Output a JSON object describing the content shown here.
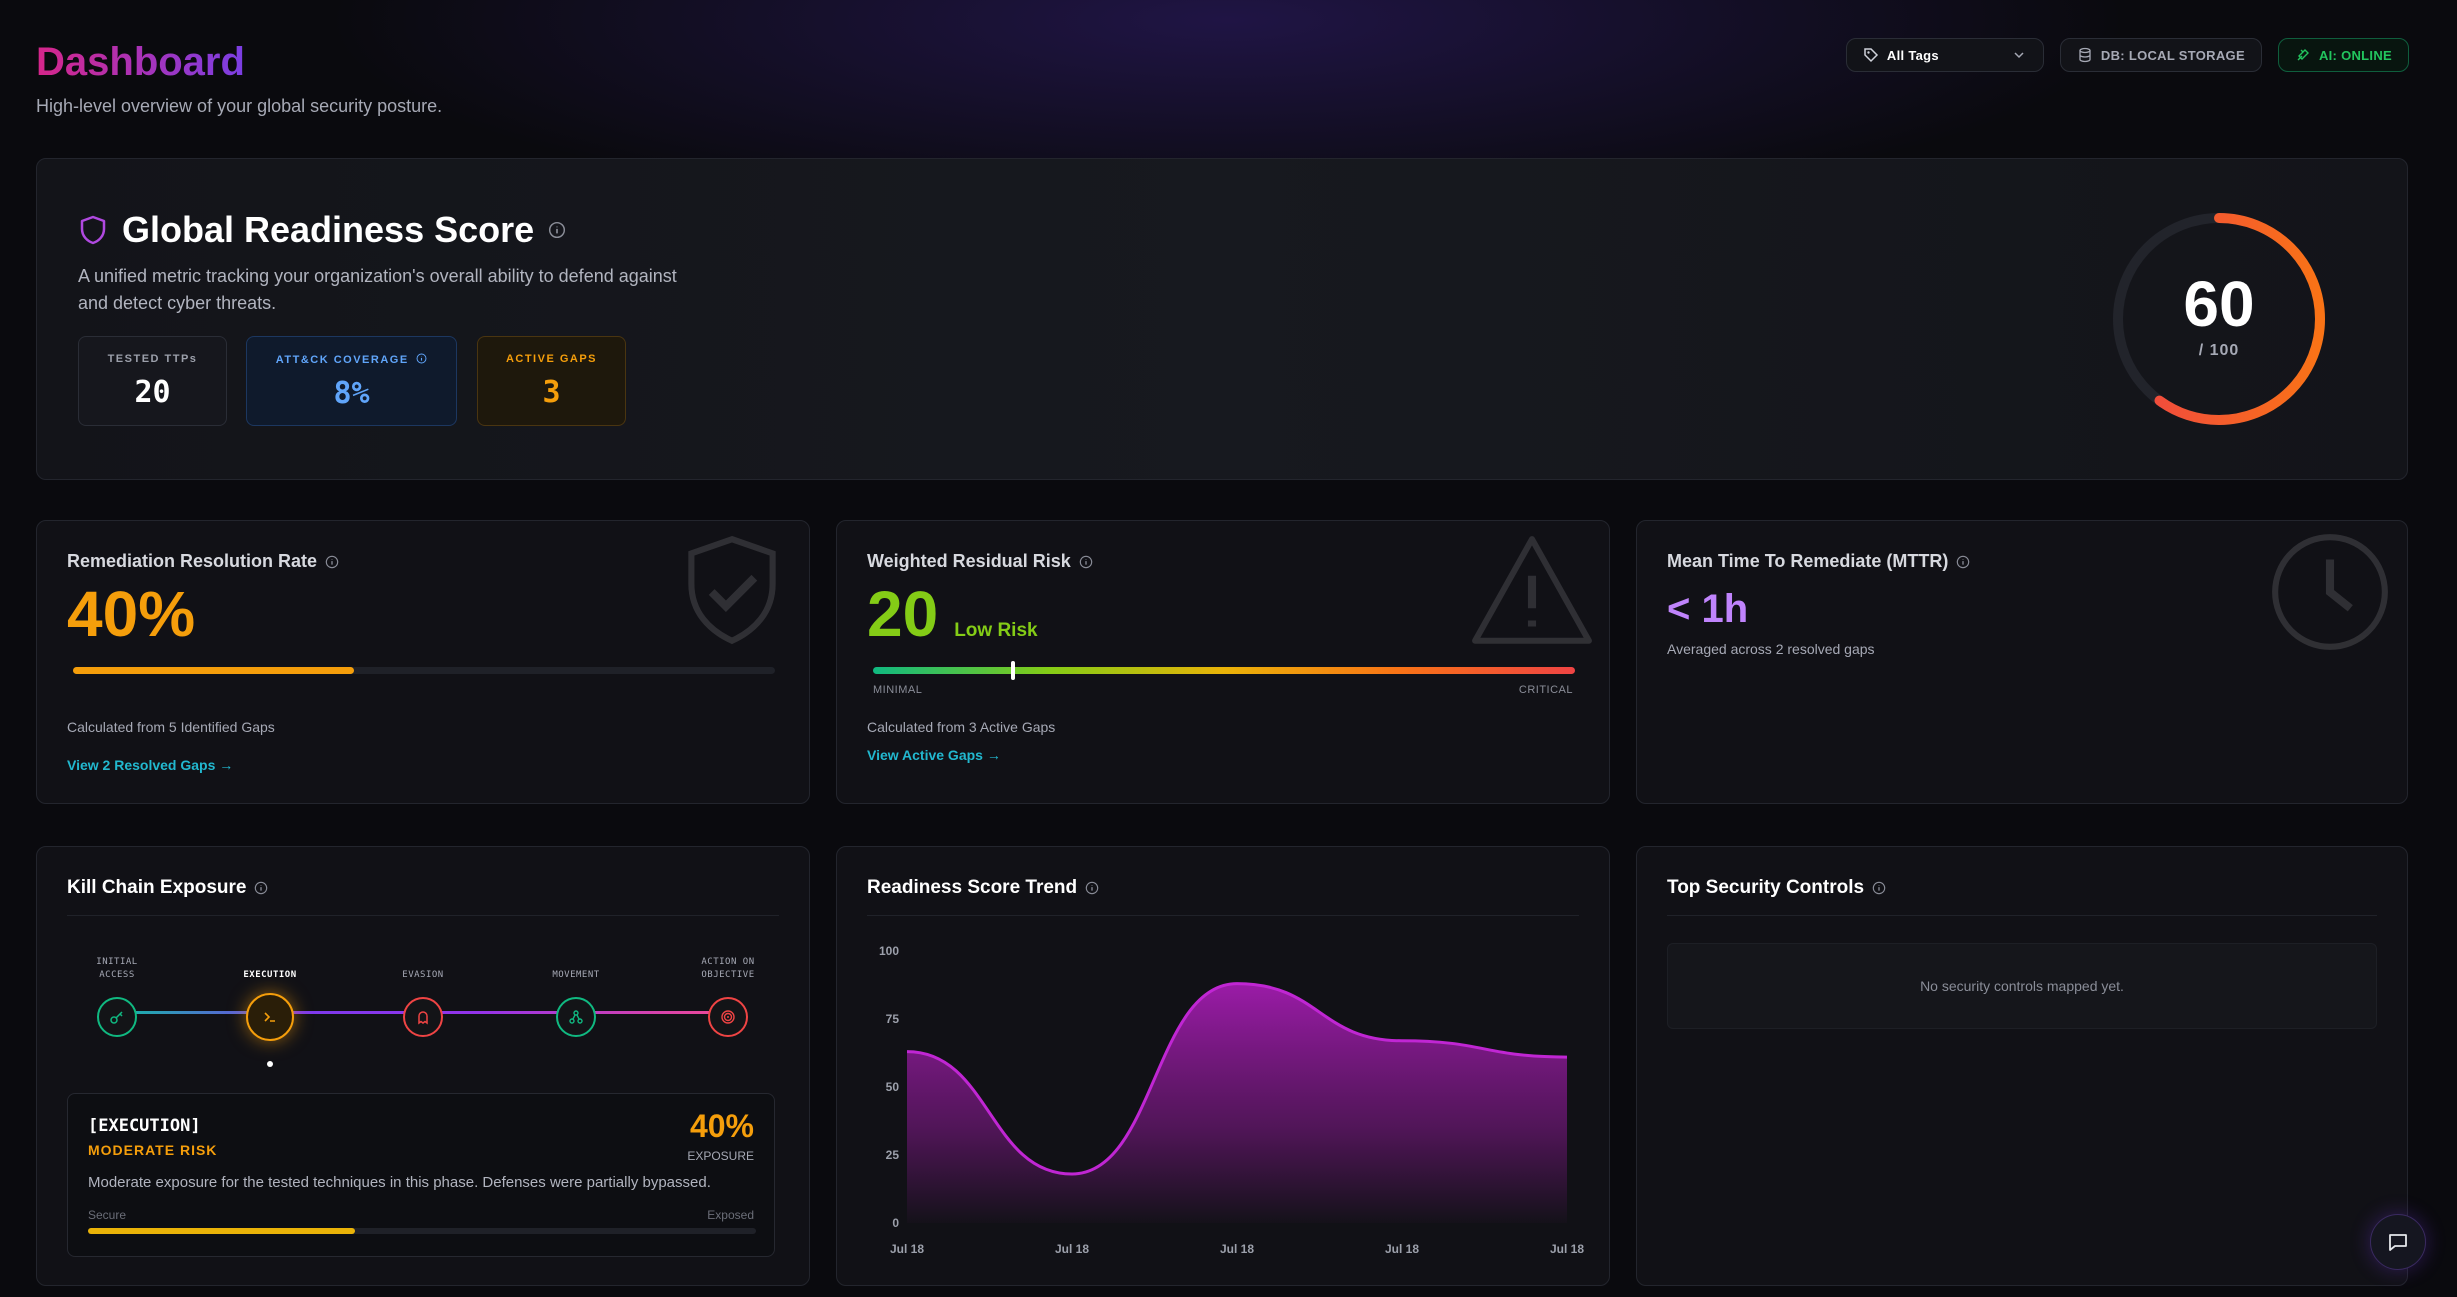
{
  "header": {
    "title": "Dashboard",
    "subtitle": "High-level overview of your global security posture."
  },
  "topbar": {
    "tags_filter": "All Tags",
    "db_status": "DB: LOCAL STORAGE",
    "ai_status": "AI: ONLINE"
  },
  "colors": {
    "accent_pink": "#d6268a",
    "accent_purple": "#7b3fe4",
    "orange": "#f59e0b",
    "success": "#22c55e",
    "link": "#22b8cf"
  },
  "readiness": {
    "title": "Global Readiness Score",
    "description": "A unified metric tracking your organization's overall ability to defend against and detect cyber threats.",
    "score": "60",
    "score_fraction": 0.6,
    "max_label": "/ 100",
    "stats": [
      {
        "label": "TESTED TTPs",
        "value": "20"
      },
      {
        "label": "ATT&CK COVERAGE",
        "value": "8%"
      },
      {
        "label": "ACTIVE GAPS",
        "value": "3"
      }
    ]
  },
  "remediation": {
    "title": "Remediation Resolution Rate",
    "value": "40%",
    "progress": 0.4,
    "note": "Calculated from 5 Identified Gaps",
    "link": "View 2 Resolved Gaps →"
  },
  "residual_risk": {
    "title": "Weighted Residual Risk",
    "value": "20",
    "level": "Low Risk",
    "marker": 0.2,
    "scale_min": "MINIMAL",
    "scale_max": "CRITICAL",
    "note": "Calculated from 3 Active Gaps",
    "link": "View Active Gaps →"
  },
  "mttr": {
    "title": "Mean Time To Remediate (MTTR)",
    "value": "< 1h",
    "note": "Averaged across 2 resolved gaps"
  },
  "kill_chain": {
    "title": "Kill Chain Exposure",
    "stages": [
      {
        "label": "INITIAL ACCESS",
        "icon": "key-icon"
      },
      {
        "label": "EXECUTION",
        "icon": "terminal-icon"
      },
      {
        "label": "EVASION",
        "icon": "ghost-icon"
      },
      {
        "label": "MOVEMENT",
        "icon": "network-icon"
      },
      {
        "label": "ACTION ON OBJECTIVE",
        "icon": "target-icon"
      }
    ],
    "selected": {
      "name": "[EXECUTION]",
      "risk": "MODERATE RISK",
      "pct": "40%",
      "pct_label": "EXPOSURE",
      "description": "Moderate exposure for the tested techniques in this phase. Defenses were partially bypassed.",
      "scale_left": "Secure",
      "scale_right": "Exposed",
      "exposure": 0.4
    }
  },
  "trend": {
    "title": "Readiness Score Trend"
  },
  "chart_data": {
    "type": "area",
    "title": "Readiness Score Trend",
    "x": [
      "Jul 18",
      "Jul 18",
      "Jul 18",
      "Jul 18",
      "Jul 18"
    ],
    "series": [
      {
        "values": [
          63,
          18,
          88,
          67,
          61
        ]
      }
    ],
    "ylim": [
      0,
      100
    ],
    "yticks": [
      100,
      75,
      50,
      25,
      0
    ],
    "grid": false
  },
  "controls": {
    "title": "Top Security Controls",
    "empty": "No security controls mapped yet."
  }
}
